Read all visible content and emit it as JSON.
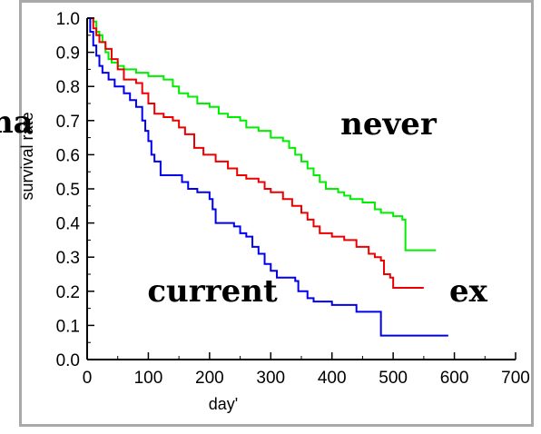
{
  "chart_data": {
    "type": "line",
    "step": true,
    "title": "",
    "xlabel": "day'",
    "ylabel": "survival rate",
    "xlim": [
      0,
      700
    ],
    "ylim": [
      0.0,
      1.0
    ],
    "xticks": [
      "0",
      "100",
      "200",
      "300",
      "400",
      "500",
      "600",
      "700"
    ],
    "yticks": [
      "0.0",
      "0.1",
      "0.2",
      "0.3",
      "0.4",
      "0.5",
      "0.6",
      "0.7",
      "0.8",
      "0.9",
      "1.0"
    ],
    "annotations": [
      {
        "text": "never"
      },
      {
        "text": "current"
      },
      {
        "text": "ex"
      },
      {
        "text": "noma"
      }
    ],
    "series": [
      {
        "color": "#00ee00",
        "points": [
          [
            0,
            1.0
          ],
          [
            10,
            0.99
          ],
          [
            15,
            0.96
          ],
          [
            20,
            0.95
          ],
          [
            25,
            0.93
          ],
          [
            30,
            0.9
          ],
          [
            35,
            0.88
          ],
          [
            40,
            0.87
          ],
          [
            50,
            0.86
          ],
          [
            60,
            0.85
          ],
          [
            80,
            0.84
          ],
          [
            100,
            0.83
          ],
          [
            125,
            0.82
          ],
          [
            140,
            0.8
          ],
          [
            150,
            0.78
          ],
          [
            165,
            0.77
          ],
          [
            180,
            0.75
          ],
          [
            200,
            0.74
          ],
          [
            215,
            0.72
          ],
          [
            230,
            0.71
          ],
          [
            250,
            0.7
          ],
          [
            260,
            0.68
          ],
          [
            280,
            0.67
          ],
          [
            300,
            0.65
          ],
          [
            320,
            0.64
          ],
          [
            330,
            0.62
          ],
          [
            340,
            0.6
          ],
          [
            350,
            0.58
          ],
          [
            360,
            0.56
          ],
          [
            370,
            0.54
          ],
          [
            380,
            0.52
          ],
          [
            390,
            0.5
          ],
          [
            410,
            0.49
          ],
          [
            420,
            0.48
          ],
          [
            430,
            0.47
          ],
          [
            450,
            0.46
          ],
          [
            470,
            0.44
          ],
          [
            480,
            0.43
          ],
          [
            500,
            0.42
          ],
          [
            515,
            0.41
          ],
          [
            520,
            0.32
          ],
          [
            570,
            0.32
          ]
        ]
      },
      {
        "color": "#ee0000",
        "points": [
          [
            0,
            1.0
          ],
          [
            10,
            0.97
          ],
          [
            15,
            0.95
          ],
          [
            20,
            0.93
          ],
          [
            30,
            0.91
          ],
          [
            40,
            0.88
          ],
          [
            50,
            0.85
          ],
          [
            60,
            0.82
          ],
          [
            80,
            0.81
          ],
          [
            90,
            0.78
          ],
          [
            100,
            0.75
          ],
          [
            110,
            0.72
          ],
          [
            125,
            0.71
          ],
          [
            140,
            0.7
          ],
          [
            150,
            0.68
          ],
          [
            160,
            0.66
          ],
          [
            175,
            0.62
          ],
          [
            190,
            0.6
          ],
          [
            210,
            0.58
          ],
          [
            230,
            0.56
          ],
          [
            245,
            0.54
          ],
          [
            260,
            0.53
          ],
          [
            280,
            0.52
          ],
          [
            290,
            0.5
          ],
          [
            300,
            0.49
          ],
          [
            320,
            0.47
          ],
          [
            335,
            0.45
          ],
          [
            350,
            0.43
          ],
          [
            360,
            0.41
          ],
          [
            370,
            0.39
          ],
          [
            380,
            0.37
          ],
          [
            400,
            0.36
          ],
          [
            420,
            0.35
          ],
          [
            440,
            0.33
          ],
          [
            460,
            0.31
          ],
          [
            470,
            0.3
          ],
          [
            480,
            0.29
          ],
          [
            485,
            0.25
          ],
          [
            495,
            0.24
          ],
          [
            500,
            0.21
          ],
          [
            550,
            0.21
          ]
        ]
      },
      {
        "color": "#0000ee",
        "points": [
          [
            0,
            1.0
          ],
          [
            5,
            0.96
          ],
          [
            10,
            0.92
          ],
          [
            15,
            0.89
          ],
          [
            20,
            0.86
          ],
          [
            25,
            0.84
          ],
          [
            35,
            0.82
          ],
          [
            45,
            0.8
          ],
          [
            60,
            0.78
          ],
          [
            70,
            0.76
          ],
          [
            80,
            0.74
          ],
          [
            90,
            0.7
          ],
          [
            95,
            0.67
          ],
          [
            100,
            0.64
          ],
          [
            105,
            0.6
          ],
          [
            110,
            0.58
          ],
          [
            120,
            0.54
          ],
          [
            155,
            0.52
          ],
          [
            165,
            0.5
          ],
          [
            180,
            0.49
          ],
          [
            200,
            0.47
          ],
          [
            205,
            0.44
          ],
          [
            210,
            0.4
          ],
          [
            240,
            0.39
          ],
          [
            250,
            0.37
          ],
          [
            260,
            0.36
          ],
          [
            270,
            0.33
          ],
          [
            280,
            0.31
          ],
          [
            290,
            0.28
          ],
          [
            300,
            0.26
          ],
          [
            310,
            0.24
          ],
          [
            340,
            0.23
          ],
          [
            345,
            0.2
          ],
          [
            360,
            0.18
          ],
          [
            370,
            0.17
          ],
          [
            400,
            0.16
          ],
          [
            440,
            0.14
          ],
          [
            480,
            0.07
          ],
          [
            590,
            0.07
          ]
        ]
      }
    ]
  }
}
